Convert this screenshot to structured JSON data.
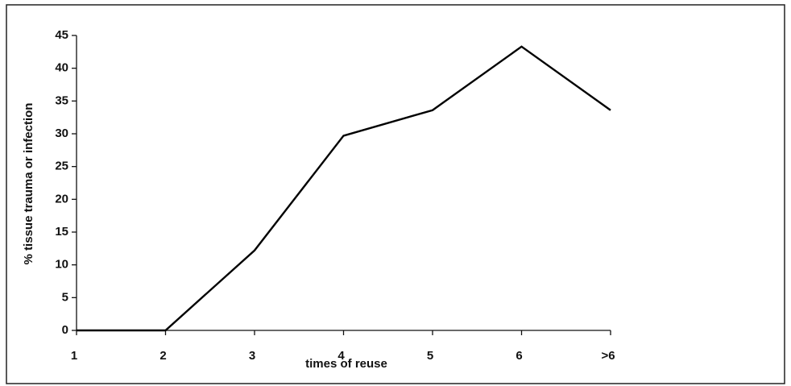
{
  "chart_data": {
    "type": "line",
    "x_label": "times of reuse",
    "y_label": "% tissue trauma or infection",
    "categories": [
      "1",
      "2",
      "3",
      "4",
      "5",
      "6",
      ">6"
    ],
    "series": [
      {
        "name": null,
        "color": "#000000",
        "values": [
          0,
          0,
          12.2,
          29.7,
          33.6,
          43.3,
          33.6
        ]
      }
    ],
    "ylim": [
      0,
      45
    ],
    "yticks": [
      0,
      5,
      10,
      15,
      20,
      25,
      30,
      35,
      40,
      45
    ],
    "grid": false
  }
}
